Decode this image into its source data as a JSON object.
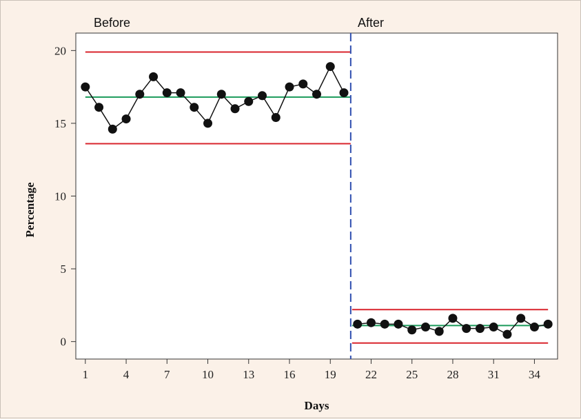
{
  "chart_data": {
    "type": "line",
    "title": "",
    "xlabel": "Days",
    "ylabel": "Percentage",
    "xlim": [
      0.3,
      35.7
    ],
    "ylim": [
      -1.2,
      21.2
    ],
    "xticks": [
      1,
      4,
      7,
      10,
      13,
      16,
      19,
      22,
      25,
      28,
      31,
      34
    ],
    "yticks": [
      0,
      5,
      10,
      15,
      20
    ],
    "phase_split": 20.5,
    "colors": {
      "data": "#111111",
      "control_limits": "#d9232b",
      "center_line": "#1a9a5a",
      "phase_divider": "#2f4fb0",
      "plot_background": "#ffffff",
      "page_background": "#fbf1e8"
    },
    "phases": [
      {
        "label": "Before",
        "x_range": [
          1,
          20.5
        ],
        "ucl": 19.9,
        "center": 16.8,
        "lcl": 13.6,
        "x": [
          1,
          2,
          3,
          4,
          5,
          6,
          7,
          8,
          9,
          10,
          11,
          12,
          13,
          14,
          15,
          16,
          17,
          18,
          19,
          20
        ],
        "values": [
          17.5,
          16.1,
          14.6,
          15.3,
          17.0,
          18.2,
          17.1,
          17.1,
          16.1,
          15.0,
          17.0,
          16.0,
          16.5,
          16.9,
          15.4,
          17.5,
          17.7,
          17.0,
          18.9,
          17.1
        ]
      },
      {
        "label": "After",
        "x_range": [
          20.5,
          35
        ],
        "ucl": 2.2,
        "center": 1.1,
        "lcl": -0.1,
        "x": [
          21,
          22,
          23,
          24,
          25,
          26,
          27,
          28,
          29,
          30,
          31,
          32,
          33,
          34,
          35
        ],
        "values": [
          1.2,
          1.3,
          1.2,
          1.2,
          0.8,
          1.0,
          0.7,
          1.6,
          0.9,
          0.9,
          1.0,
          0.5,
          1.6,
          1.0,
          1.2
        ]
      }
    ]
  }
}
